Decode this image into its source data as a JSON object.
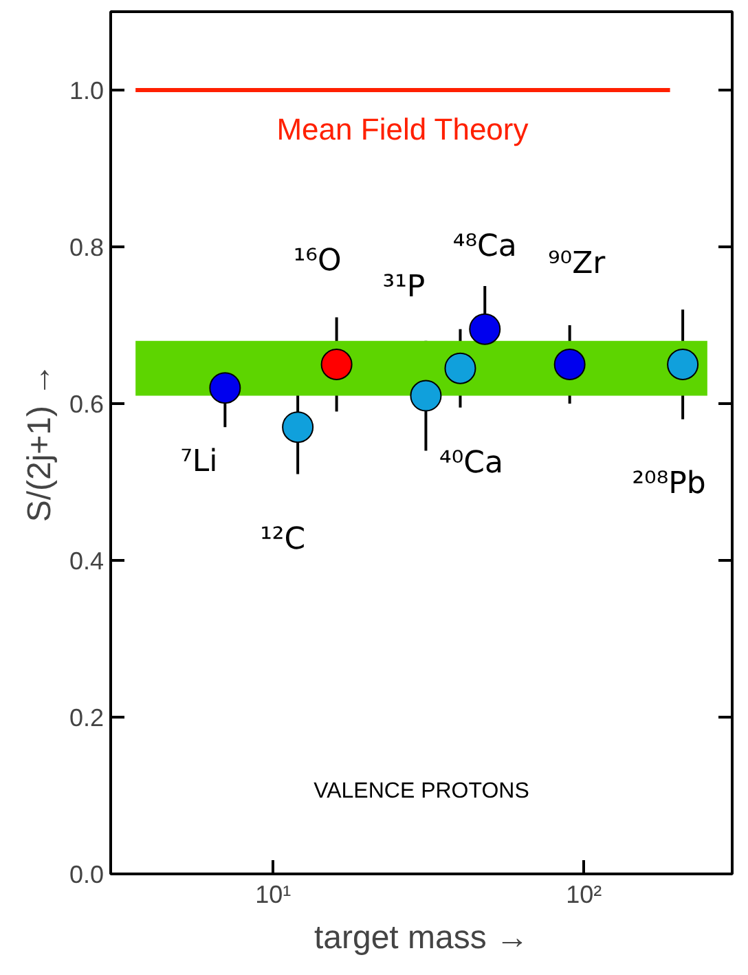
{
  "chart_data": {
    "type": "scatter",
    "xlabel": "target mass →",
    "ylabel": "S/(2j+1) →",
    "x": [
      7,
      12,
      16,
      31,
      40,
      48,
      90,
      208
    ],
    "values": [
      0.62,
      0.57,
      0.65,
      0.61,
      0.645,
      0.695,
      0.65,
      0.65
    ],
    "errors": [
      0.05,
      0.06,
      0.06,
      0.07,
      0.05,
      0.055,
      0.05,
      0.07
    ],
    "colors": [
      "#0000ee",
      "#10a0dc",
      "#ff0000",
      "#10a0dc",
      "#10a0dc",
      "#0000ee",
      "#0000ee",
      "#10a0dc"
    ],
    "marker": "circle",
    "log": "x",
    "grid": false,
    "xlim": [
      3,
      300
    ],
    "xticks": [
      {
        "value": 10,
        "label": "10¹"
      },
      {
        "value": 100,
        "label": "10²"
      }
    ],
    "ylim": [
      0,
      1.1
    ],
    "yticks": [
      {
        "value": 0,
        "label": "0.0"
      },
      {
        "value": 0.2,
        "label": "0.2"
      },
      {
        "value": 0.4,
        "label": "0.4"
      },
      {
        "value": 0.6,
        "label": "0.6"
      },
      {
        "value": 0.8,
        "label": "0.8"
      },
      {
        "value": 1.0,
        "label": "1.0"
      }
    ],
    "ref_lines": [
      {
        "axis": "y",
        "value": 1.0,
        "label": "Mean Field Theory",
        "color": "#ff2000",
        "line_style": "solid"
      }
    ],
    "bands": [
      {
        "axis": "y",
        "from": 0.61,
        "to": 0.68,
        "color": "#5dd500"
      }
    ],
    "annotations": [
      "⁷Li",
      "¹²C",
      "¹⁶O",
      "³¹P",
      "⁴⁰Ca",
      "⁴⁸Ca",
      "⁹⁰Zr",
      "²⁰⁸Pb",
      "VALENCE PROTONS"
    ]
  }
}
